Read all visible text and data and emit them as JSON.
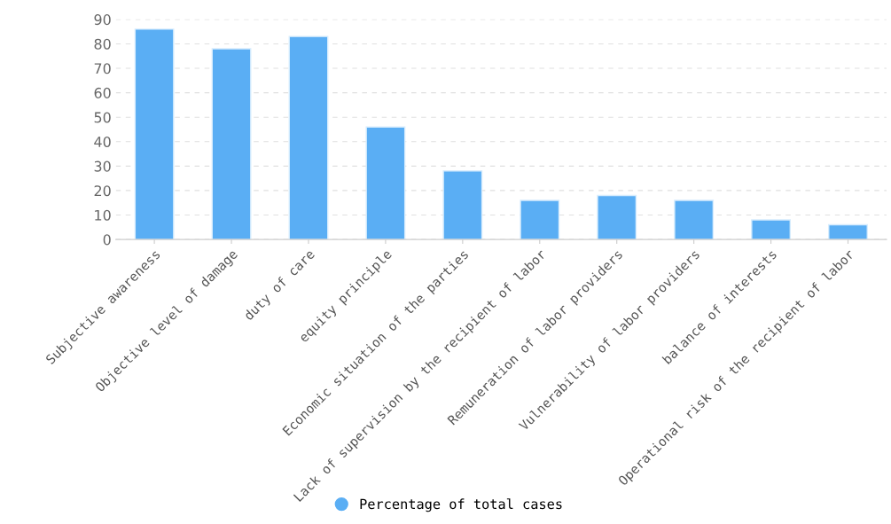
{
  "chart_data": {
    "type": "bar",
    "categories": [
      "Subjective awareness",
      "Objective level of damage",
      "duty of care",
      "equity principle",
      "Economic situation of the parties",
      "Lack of supervision by the recipient of labor",
      "Remuneration of labor providers",
      "Vulnerability of labor providers",
      "balance of interests",
      "Operational risk of the recipient of labor"
    ],
    "series": [
      {
        "name": "Percentage of total cases",
        "color": "#5aaef4",
        "values": [
          86,
          78,
          83,
          46,
          28,
          16,
          18,
          16,
          8,
          6
        ]
      }
    ],
    "ylim": [
      0,
      90
    ],
    "yticks": [
      0,
      10,
      20,
      30,
      40,
      50,
      60,
      70,
      80,
      90
    ],
    "grid": "y",
    "legend": "bottom"
  }
}
